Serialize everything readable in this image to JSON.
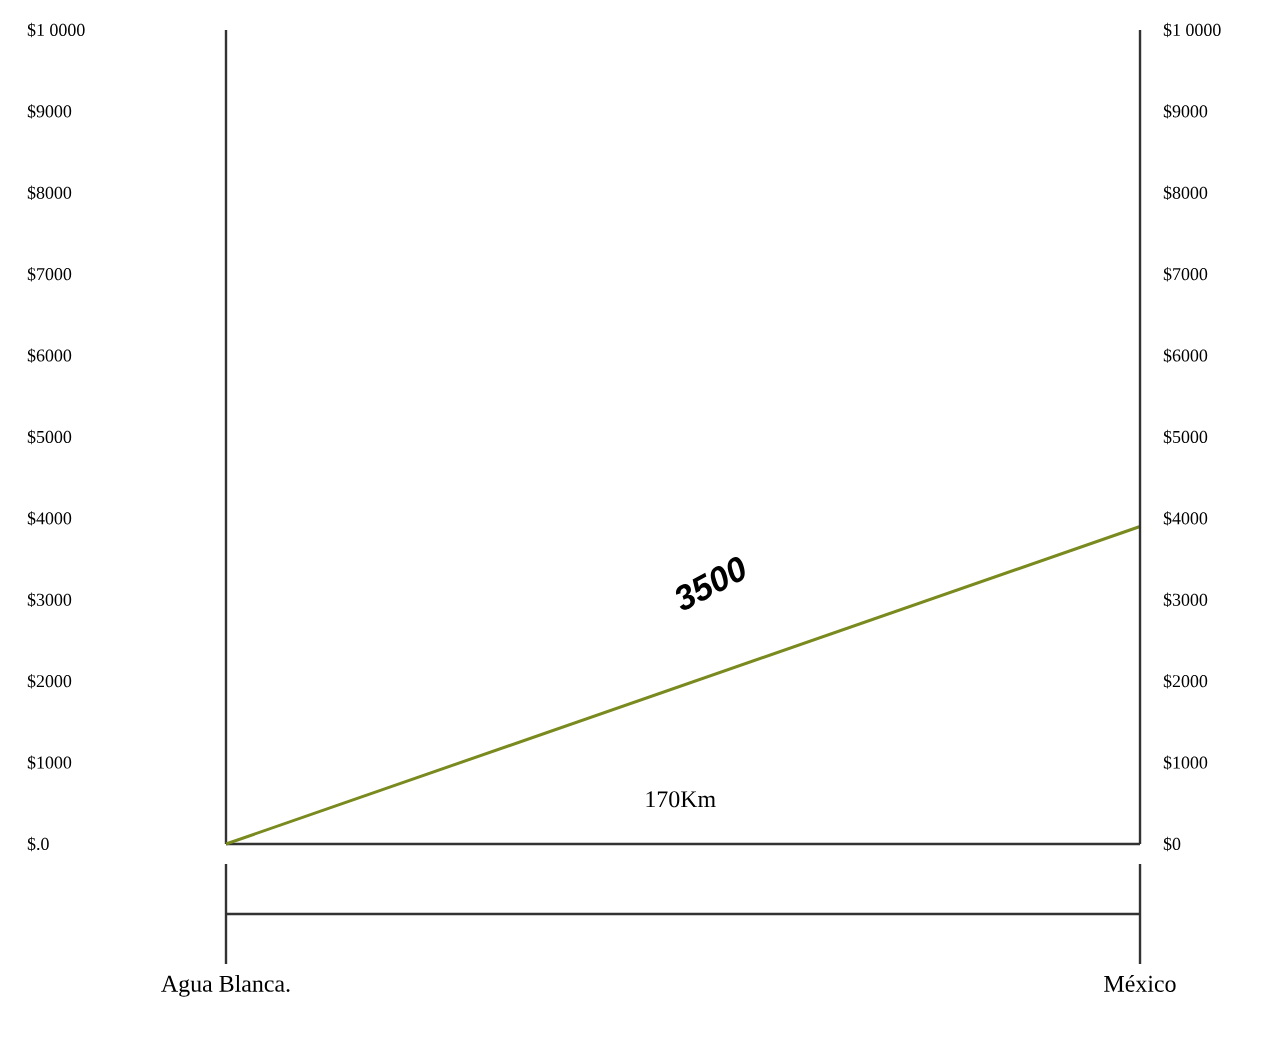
{
  "chart_data": {
    "type": "line",
    "categories": [
      "Agua Blanca.",
      "México"
    ],
    "series": [
      {
        "color": "#7a8a1e",
        "values": [
          0,
          3900
        ]
      }
    ],
    "ylim": [
      0,
      10000
    ],
    "yticks": [
      {
        "value": 0,
        "label": "$.0"
      },
      {
        "value": 1000,
        "label": "$1000"
      },
      {
        "value": 2000,
        "label": "$2000"
      },
      {
        "value": 3000,
        "label": "$3000"
      },
      {
        "value": 4000,
        "label": "$4000"
      },
      {
        "value": 5000,
        "label": "$5000"
      },
      {
        "value": 6000,
        "label": "$6000"
      },
      {
        "value": 7000,
        "label": "$7000"
      },
      {
        "value": 8000,
        "label": "$8000"
      },
      {
        "value": 9000,
        "label": "$9000"
      },
      {
        "value": 10000,
        "label": "$1 0000"
      }
    ],
    "y2lim": [
      0,
      10000
    ],
    "y2ticks": [
      {
        "value": 0,
        "label": "$0"
      },
      {
        "value": 1000,
        "label": "$1000"
      },
      {
        "value": 2000,
        "label": "$2000"
      },
      {
        "value": 3000,
        "label": "$3000"
      },
      {
        "value": 4000,
        "label": "$4000"
      },
      {
        "value": 5000,
        "label": "$5000"
      },
      {
        "value": 6000,
        "label": "$6000"
      },
      {
        "value": 7000,
        "label": "$7000"
      },
      {
        "value": 8000,
        "label": "$8000"
      },
      {
        "value": 9000,
        "label": "$9000"
      },
      {
        "value": 10000,
        "label": "$1 0000"
      }
    ],
    "annotations": [
      "3500",
      "170Km"
    ],
    "marker": "none",
    "line_style": "solid"
  }
}
